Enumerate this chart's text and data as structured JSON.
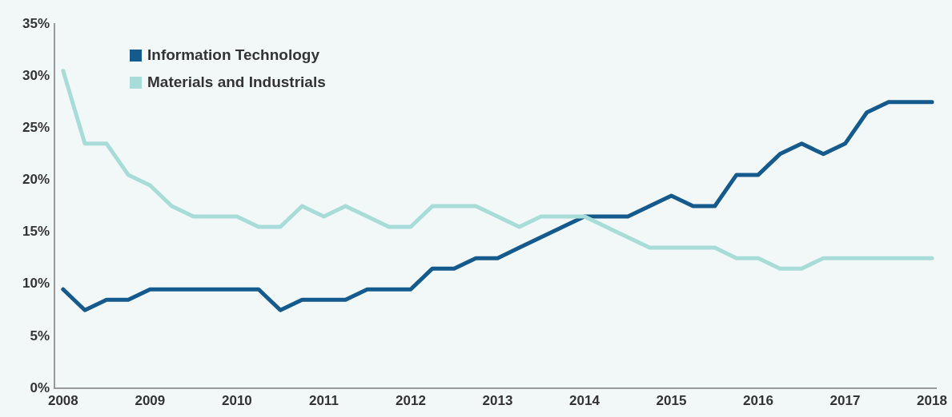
{
  "chart_data": {
    "type": "line",
    "x": [
      2008,
      2008.25,
      2008.5,
      2008.75,
      2009,
      2009.25,
      2009.5,
      2009.75,
      2010,
      2010.25,
      2010.5,
      2010.75,
      2011,
      2011.25,
      2011.5,
      2011.75,
      2012,
      2012.25,
      2012.5,
      2012.75,
      2013,
      2013.25,
      2013.5,
      2013.75,
      2014,
      2014.25,
      2014.5,
      2014.75,
      2015,
      2015.25,
      2015.5,
      2015.75,
      2016,
      2016.25,
      2016.5,
      2016.75,
      2017,
      2017.25,
      2017.5,
      2017.75,
      2018
    ],
    "series": [
      {
        "name": "Information Technology",
        "color": "#145a8c",
        "values": [
          9.5,
          7.5,
          8.5,
          8.5,
          9.5,
          9.5,
          9.5,
          9.5,
          9.5,
          9.5,
          7.5,
          8.5,
          8.5,
          8.5,
          9.5,
          9.5,
          9.5,
          11.5,
          11.5,
          12.5,
          12.5,
          13.5,
          14.5,
          15.5,
          16.5,
          16.5,
          16.5,
          17.5,
          18.5,
          17.5,
          17.5,
          20.5,
          20.5,
          22.5,
          23.5,
          22.5,
          23.5,
          26.5,
          27.5,
          27.5,
          27.5
        ]
      },
      {
        "name": "Materials and Industrials",
        "color": "#a8dcd9",
        "values": [
          30.5,
          23.5,
          23.5,
          20.5,
          19.5,
          17.5,
          16.5,
          16.5,
          16.5,
          15.5,
          15.5,
          17.5,
          16.5,
          17.5,
          16.5,
          15.5,
          15.5,
          17.5,
          17.5,
          17.5,
          16.5,
          15.5,
          16.5,
          16.5,
          16.5,
          15.5,
          14.5,
          13.5,
          13.5,
          13.5,
          13.5,
          12.5,
          12.5,
          11.5,
          11.5,
          12.5,
          12.5,
          12.5,
          12.5,
          12.5,
          12.5
        ]
      }
    ],
    "xlim": [
      2007.9,
      2018.05
    ],
    "xticks": [
      2008,
      2009,
      2010,
      2011,
      2012,
      2013,
      2014,
      2015,
      2016,
      2017,
      2018
    ],
    "ylim": [
      0,
      35
    ],
    "yticks": [
      {
        "value": 0,
        "label": "0%"
      },
      {
        "value": 5,
        "label": "5%"
      },
      {
        "value": 10,
        "label": "10%"
      },
      {
        "value": 15,
        "label": "15%"
      },
      {
        "value": 20,
        "label": "20%"
      },
      {
        "value": 25,
        "label": "25%"
      },
      {
        "value": 30,
        "label": "30%"
      },
      {
        "value": 35,
        "label": "35%"
      }
    ],
    "legend": "top left",
    "marker": "none",
    "line_style": "solid"
  }
}
